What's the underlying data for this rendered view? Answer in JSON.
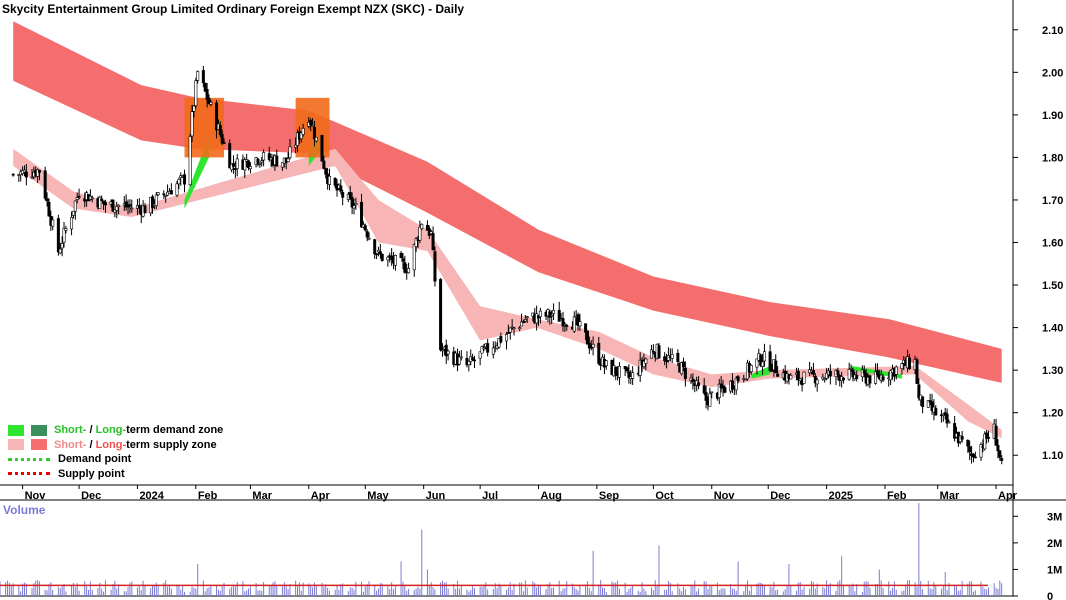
{
  "title": "Skycity Entertainment Group Limited Ordinary Foreign Exempt NZX (SKC) - Daily",
  "volume_label": "Volume",
  "legend": {
    "demand_zone": {
      "short": "Short-",
      "sep": " / ",
      "long": "Long-",
      "rest": "term demand zone"
    },
    "supply_zone": {
      "short": "Short-",
      "sep": " / ",
      "long": "Long-",
      "rest": "term supply zone"
    },
    "demand_point": "Demand point",
    "supply_point": "Supply point"
  },
  "colors": {
    "short_demand": "#2ee62e",
    "long_demand": "#3a8f5c",
    "short_supply": "#f7b5b5",
    "long_supply": "#f56e6e",
    "overlap_orange": "#f26a1b",
    "demand_point": "#2ecc2e",
    "supply_point": "#e60000",
    "volume_bar": "#7b7bd6",
    "volume_ma": "#d62020",
    "label_green": "#27c227",
    "label_pink": "#f08a8a",
    "label_red": "#f05050"
  },
  "chart_data": {
    "type": "candlestick",
    "x_ticks": [
      "Nov",
      "Dec",
      "2024",
      "Feb",
      "Mar",
      "Apr",
      "May",
      "Jun",
      "Jul",
      "Aug",
      "Sep",
      "Oct",
      "Nov",
      "Dec",
      "2025",
      "Feb",
      "Mar",
      "Apr"
    ],
    "y_ticks": [
      "2.10",
      "2.00",
      "1.90",
      "1.80",
      "1.70",
      "1.60",
      "1.50",
      "1.40",
      "1.30",
      "1.20",
      "1.10"
    ],
    "ylim": [
      1.03,
      2.17
    ],
    "volume_ticks": [
      "3M",
      "2M",
      "1M",
      "0"
    ],
    "volume_ylim": [
      0,
      3500000
    ],
    "price_series": [
      {
        "date": "2023-10-27",
        "close": 1.76
      },
      {
        "date": "2023-11-10",
        "close": 1.77
      },
      {
        "date": "2023-11-20",
        "close": 1.58
      },
      {
        "date": "2023-12-01",
        "close": 1.72
      },
      {
        "date": "2023-12-15",
        "close": 1.69
      },
      {
        "date": "2024-01-05",
        "close": 1.68
      },
      {
        "date": "2024-01-26",
        "close": 1.75
      },
      {
        "date": "2024-02-02",
        "close": 2.0
      },
      {
        "date": "2024-02-12",
        "close": 1.88
      },
      {
        "date": "2024-02-20",
        "close": 1.78
      },
      {
        "date": "2024-03-05",
        "close": 1.8
      },
      {
        "date": "2024-03-20",
        "close": 1.79
      },
      {
        "date": "2024-04-01",
        "close": 1.9
      },
      {
        "date": "2024-04-12",
        "close": 1.74
      },
      {
        "date": "2024-04-26",
        "close": 1.68
      },
      {
        "date": "2024-05-08",
        "close": 1.57
      },
      {
        "date": "2024-05-24",
        "close": 1.54
      },
      {
        "date": "2024-05-31",
        "close": 1.65
      },
      {
        "date": "2024-06-05",
        "close": 1.62
      },
      {
        "date": "2024-06-10",
        "close": 1.35
      },
      {
        "date": "2024-06-24",
        "close": 1.31
      },
      {
        "date": "2024-07-08",
        "close": 1.36
      },
      {
        "date": "2024-07-25",
        "close": 1.42
      },
      {
        "date": "2024-08-08",
        "close": 1.43
      },
      {
        "date": "2024-08-21",
        "close": 1.41
      },
      {
        "date": "2024-09-05",
        "close": 1.31
      },
      {
        "date": "2024-09-19",
        "close": 1.28
      },
      {
        "date": "2024-10-01",
        "close": 1.35
      },
      {
        "date": "2024-10-15",
        "close": 1.31
      },
      {
        "date": "2024-10-29",
        "close": 1.23
      },
      {
        "date": "2024-11-12",
        "close": 1.27
      },
      {
        "date": "2024-11-28",
        "close": 1.33
      },
      {
        "date": "2024-12-12",
        "close": 1.28
      },
      {
        "date": "2025-01-09",
        "close": 1.29
      },
      {
        "date": "2025-01-27",
        "close": 1.28
      },
      {
        "date": "2025-02-10",
        "close": 1.31
      },
      {
        "date": "2025-02-17",
        "close": 1.32
      },
      {
        "date": "2025-02-19",
        "close": 1.23
      },
      {
        "date": "2025-03-05",
        "close": 1.18
      },
      {
        "date": "2025-03-19",
        "close": 1.1
      },
      {
        "date": "2025-03-31",
        "close": 1.16
      },
      {
        "date": "2025-04-04",
        "close": 1.07
      }
    ],
    "long_term_supply_zone": [
      {
        "date": "2023-10-27",
        "upper": 2.12,
        "lower": 1.98
      },
      {
        "date": "2024-01-03",
        "upper": 1.97,
        "lower": 1.84
      },
      {
        "date": "2024-02-02",
        "upper": 1.94,
        "lower": 1.82
      },
      {
        "date": "2024-04-01",
        "upper": 1.91,
        "lower": 1.81
      },
      {
        "date": "2024-06-03",
        "upper": 1.79,
        "lower": 1.67
      },
      {
        "date": "2024-08-01",
        "upper": 1.63,
        "lower": 1.53
      },
      {
        "date": "2024-10-01",
        "upper": 1.52,
        "lower": 1.44
      },
      {
        "date": "2024-12-02",
        "upper": 1.46,
        "lower": 1.38
      },
      {
        "date": "2025-02-03",
        "upper": 1.42,
        "lower": 1.33
      },
      {
        "date": "2025-04-04",
        "upper": 1.35,
        "lower": 1.27
      }
    ],
    "short_term_supply_zone": [
      {
        "date": "2023-10-27",
        "upper": 1.82,
        "lower": 1.78
      },
      {
        "date": "2023-11-28",
        "upper": 1.72,
        "lower": 1.68
      },
      {
        "date": "2023-12-29",
        "upper": 1.68,
        "lower": 1.66
      },
      {
        "date": "2024-04-15",
        "upper": 1.82,
        "lower": 1.78
      },
      {
        "date": "2024-05-08",
        "upper": 1.7,
        "lower": 1.6
      },
      {
        "date": "2024-06-03",
        "upper": 1.63,
        "lower": 1.58
      },
      {
        "date": "2024-07-01",
        "upper": 1.45,
        "lower": 1.37
      },
      {
        "date": "2024-07-31",
        "upper": 1.42,
        "lower": 1.4
      },
      {
        "date": "2024-09-02",
        "upper": 1.39,
        "lower": 1.35
      },
      {
        "date": "2024-10-01",
        "upper": 1.33,
        "lower": 1.29
      },
      {
        "date": "2024-11-01",
        "upper": 1.29,
        "lower": 1.26
      },
      {
        "date": "2024-12-02",
        "upper": 1.3,
        "lower": 1.28
      },
      {
        "date": "2025-02-17",
        "upper": 1.31,
        "lower": 1.29
      },
      {
        "date": "2025-03-17",
        "upper": 1.22,
        "lower": 1.18
      },
      {
        "date": "2025-04-04",
        "upper": 1.16,
        "lower": 1.14
      }
    ],
    "short_term_demand_zone": [
      {
        "date": "2024-01-26",
        "upper": 1.7,
        "lower": 1.68
      },
      {
        "date": "2024-02-08",
        "upper": 1.85,
        "lower": 1.8
      },
      {
        "date": "2024-04-01",
        "upper": 1.82,
        "lower": 1.78
      },
      {
        "date": "2024-04-08",
        "upper": 1.85,
        "lower": 1.82
      },
      {
        "date": "2024-11-22",
        "upper": 1.29,
        "lower": 1.28
      },
      {
        "date": "2024-12-02",
        "upper": 1.31,
        "lower": 1.29
      },
      {
        "date": "2025-01-14",
        "upper": 1.31,
        "lower": 1.3
      },
      {
        "date": "2025-02-10",
        "upper": 1.29,
        "lower": 1.28
      }
    ],
    "volume_moving_average": 400000,
    "volume_spikes": [
      {
        "date": "2024-02-02",
        "volume": 1200000
      },
      {
        "date": "2024-05-20",
        "volume": 1300000
      },
      {
        "date": "2024-05-31",
        "volume": 2500000
      },
      {
        "date": "2024-06-03",
        "volume": 1000000
      },
      {
        "date": "2024-08-30",
        "volume": 1700000
      },
      {
        "date": "2024-10-04",
        "volume": 1900000
      },
      {
        "date": "2024-11-15",
        "volume": 1300000
      },
      {
        "date": "2024-12-12",
        "volume": 1200000
      },
      {
        "date": "2025-01-09",
        "volume": 1500000
      },
      {
        "date": "2025-01-29",
        "volume": 1000000
      },
      {
        "date": "2025-02-19",
        "volume": 3700000
      },
      {
        "date": "2025-03-05",
        "volume": 900000
      }
    ]
  }
}
